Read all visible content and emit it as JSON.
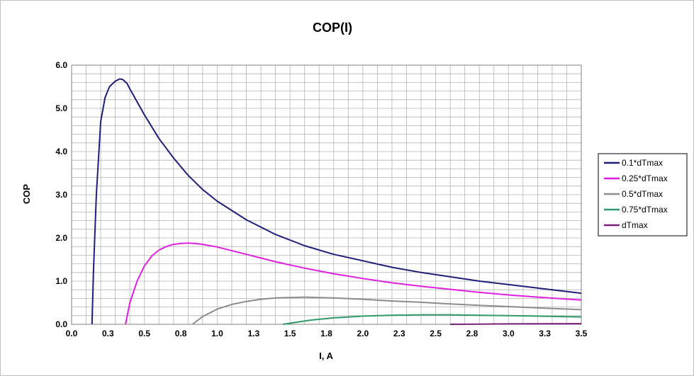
{
  "chart_data": {
    "type": "line",
    "title": "COP(I)",
    "xlabel": "I, A",
    "ylabel": "COP",
    "xlim": [
      0.0,
      3.5
    ],
    "ylim": [
      0.0,
      6.0
    ],
    "x_ticks": [
      "0.0",
      "0.3",
      "0.5",
      "0.8",
      "1.0",
      "1.3",
      "1.5",
      "1.8",
      "2.0",
      "2.3",
      "2.5",
      "2.8",
      "3.0",
      "3.3",
      "3.5"
    ],
    "y_ticks": [
      "0.0",
      "1.0",
      "2.0",
      "3.0",
      "4.0",
      "5.0",
      "6.0"
    ],
    "grid": true,
    "legend_position": "right",
    "series": [
      {
        "name": "0.1*dTmax",
        "color": "#1f1f7a",
        "x": [
          0.14,
          0.15,
          0.17,
          0.2,
          0.23,
          0.26,
          0.3,
          0.33,
          0.35,
          0.38,
          0.4,
          0.45,
          0.5,
          0.6,
          0.7,
          0.8,
          0.9,
          1.0,
          1.2,
          1.4,
          1.6,
          1.8,
          2.0,
          2.2,
          2.4,
          2.6,
          2.8,
          3.0,
          3.2,
          3.5
        ],
        "y": [
          0.0,
          1.2,
          3.0,
          4.7,
          5.25,
          5.5,
          5.63,
          5.68,
          5.67,
          5.58,
          5.45,
          5.15,
          4.85,
          4.3,
          3.85,
          3.45,
          3.12,
          2.85,
          2.42,
          2.08,
          1.82,
          1.62,
          1.47,
          1.32,
          1.2,
          1.1,
          1.0,
          0.92,
          0.84,
          0.72
        ]
      },
      {
        "name": "0.25*dTmax",
        "color": "#e020e0",
        "x": [
          0.37,
          0.4,
          0.45,
          0.5,
          0.55,
          0.6,
          0.65,
          0.7,
          0.75,
          0.8,
          0.85,
          0.9,
          1.0,
          1.2,
          1.4,
          1.6,
          1.8,
          2.0,
          2.2,
          2.4,
          2.6,
          2.8,
          3.0,
          3.2,
          3.5
        ],
        "y": [
          0.0,
          0.5,
          1.0,
          1.35,
          1.58,
          1.72,
          1.8,
          1.85,
          1.87,
          1.88,
          1.87,
          1.85,
          1.79,
          1.62,
          1.45,
          1.3,
          1.17,
          1.06,
          0.96,
          0.88,
          0.81,
          0.74,
          0.68,
          0.63,
          0.56
        ]
      },
      {
        "name": "0.5*dTmax",
        "color": "#8c8c8c",
        "x": [
          0.83,
          0.9,
          1.0,
          1.1,
          1.2,
          1.3,
          1.4,
          1.5,
          1.6,
          1.7,
          1.8,
          2.0,
          2.2,
          2.4,
          2.6,
          2.8,
          3.0,
          3.2,
          3.5
        ],
        "y": [
          0.0,
          0.18,
          0.35,
          0.46,
          0.53,
          0.58,
          0.61,
          0.62,
          0.63,
          0.62,
          0.61,
          0.58,
          0.54,
          0.51,
          0.47,
          0.44,
          0.41,
          0.38,
          0.34
        ]
      },
      {
        "name": "0.75*dTmax",
        "color": "#2f9a6a",
        "x": [
          1.45,
          1.55,
          1.65,
          1.8,
          2.0,
          2.2,
          2.4,
          2.6,
          2.8,
          3.0,
          3.2,
          3.5
        ],
        "y": [
          0.0,
          0.05,
          0.1,
          0.15,
          0.19,
          0.21,
          0.22,
          0.22,
          0.21,
          0.2,
          0.19,
          0.17
        ]
      },
      {
        "name": "dTmax",
        "color": "#7a1f7a",
        "x": [
          2.6,
          2.8,
          3.0,
          3.2,
          3.5
        ],
        "y": [
          0.0,
          0.005,
          0.01,
          0.012,
          0.015
        ]
      }
    ]
  }
}
